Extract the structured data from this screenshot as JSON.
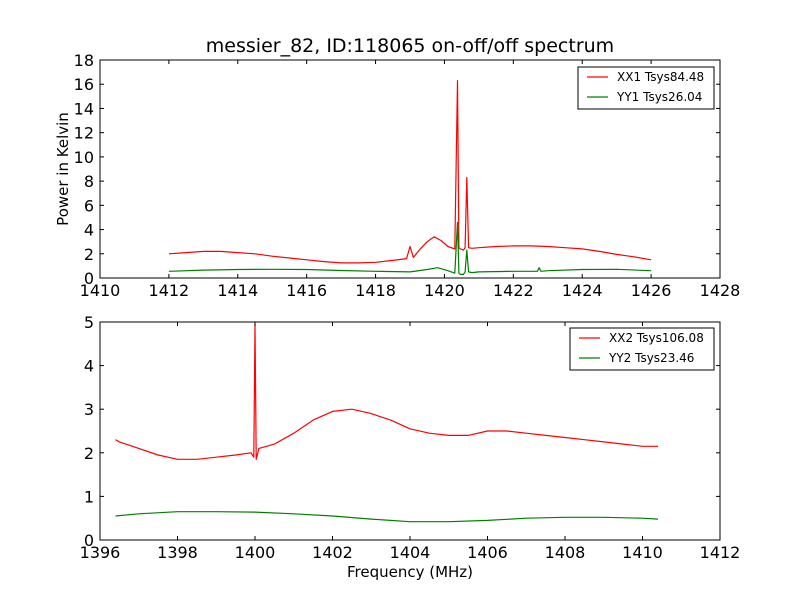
{
  "chart_data": [
    {
      "type": "line",
      "title": "messier_82, ID:118065 on-off/off spectrum",
      "xlabel": "",
      "ylabel": "Power in Kelvin",
      "xlim": [
        1410,
        1428
      ],
      "ylim": [
        0,
        18
      ],
      "xticks": [
        1410,
        1412,
        1414,
        1416,
        1418,
        1420,
        1422,
        1424,
        1426,
        1428
      ],
      "yticks": [
        0,
        2,
        4,
        6,
        8,
        10,
        12,
        14,
        16,
        18
      ],
      "grid": false,
      "legend": "top-right",
      "series": [
        {
          "name": "XX1 Tsys84.48",
          "color": "#ff0000",
          "x": [
            1412.0,
            1412.5,
            1413.0,
            1413.5,
            1414.0,
            1414.5,
            1415.0,
            1415.5,
            1416.0,
            1416.5,
            1417.0,
            1417.5,
            1418.0,
            1418.5,
            1418.9,
            1419.0,
            1419.1,
            1419.3,
            1419.5,
            1419.7,
            1419.9,
            1420.1,
            1420.3,
            1420.38,
            1420.42,
            1420.46,
            1420.55,
            1420.6,
            1420.65,
            1420.7,
            1420.8,
            1421.0,
            1421.5,
            1422.0,
            1422.5,
            1423.0,
            1423.5,
            1424.0,
            1424.5,
            1425.0,
            1425.5,
            1426.0
          ],
          "y": [
            2.0,
            2.1,
            2.2,
            2.2,
            2.1,
            2.0,
            1.8,
            1.65,
            1.5,
            1.35,
            1.25,
            1.25,
            1.3,
            1.45,
            1.6,
            2.6,
            1.7,
            2.4,
            3.0,
            3.4,
            3.1,
            2.6,
            2.4,
            16.3,
            2.5,
            2.4,
            2.3,
            2.5,
            8.3,
            2.5,
            2.45,
            2.5,
            2.6,
            2.65,
            2.65,
            2.6,
            2.5,
            2.4,
            2.2,
            1.95,
            1.75,
            1.5
          ]
        },
        {
          "name": "YY1 Tsys26.04",
          "color": "#008000",
          "x": [
            1412.0,
            1413.0,
            1414.0,
            1415.0,
            1416.0,
            1417.0,
            1418.0,
            1419.0,
            1419.5,
            1419.8,
            1420.1,
            1420.3,
            1420.38,
            1420.42,
            1420.46,
            1420.55,
            1420.6,
            1420.65,
            1420.7,
            1420.8,
            1421.0,
            1422.0,
            1422.7,
            1422.75,
            1422.8,
            1423.0,
            1424.0,
            1425.0,
            1426.0
          ],
          "y": [
            0.55,
            0.65,
            0.7,
            0.72,
            0.7,
            0.62,
            0.55,
            0.5,
            0.7,
            0.85,
            0.6,
            0.4,
            4.6,
            0.4,
            0.3,
            0.3,
            0.5,
            2.3,
            0.5,
            0.45,
            0.5,
            0.55,
            0.55,
            0.85,
            0.55,
            0.6,
            0.7,
            0.72,
            0.6
          ]
        }
      ]
    },
    {
      "type": "line",
      "title": "",
      "xlabel": "Frequency (MHz)",
      "ylabel": "",
      "xlim": [
        1396,
        1412
      ],
      "ylim": [
        0,
        5
      ],
      "xticks": [
        1396,
        1398,
        1400,
        1402,
        1404,
        1406,
        1408,
        1410,
        1412
      ],
      "yticks": [
        0,
        1,
        2,
        3,
        4,
        5
      ],
      "grid": false,
      "legend": "top-right",
      "series": [
        {
          "name": "XX2 Tsys106.08",
          "color": "#ff0000",
          "x": [
            1396.4,
            1396.5,
            1397.0,
            1397.5,
            1398.0,
            1398.5,
            1399.0,
            1399.5,
            1399.9,
            1399.97,
            1400.0,
            1400.03,
            1400.1,
            1400.5,
            1401.0,
            1401.5,
            1402.0,
            1402.5,
            1403.0,
            1403.5,
            1404.0,
            1404.5,
            1405.0,
            1405.5,
            1406.0,
            1406.5,
            1407.0,
            1407.5,
            1408.0,
            1408.5,
            1409.0,
            1409.5,
            1410.0,
            1410.4
          ],
          "y": [
            2.3,
            2.25,
            2.1,
            1.95,
            1.85,
            1.85,
            1.9,
            1.95,
            2.0,
            1.9,
            4.95,
            1.85,
            2.1,
            2.2,
            2.45,
            2.75,
            2.95,
            3.0,
            2.9,
            2.75,
            2.55,
            2.45,
            2.4,
            2.4,
            2.5,
            2.5,
            2.45,
            2.4,
            2.35,
            2.3,
            2.25,
            2.2,
            2.15,
            2.15
          ]
        },
        {
          "name": "YY2 Tsys23.46",
          "color": "#008000",
          "x": [
            1396.4,
            1397.0,
            1398.0,
            1399.0,
            1400.0,
            1401.0,
            1402.0,
            1403.0,
            1404.0,
            1405.0,
            1406.0,
            1407.0,
            1408.0,
            1409.0,
            1410.0,
            1410.4
          ],
          "y": [
            0.55,
            0.6,
            0.65,
            0.65,
            0.64,
            0.6,
            0.55,
            0.48,
            0.42,
            0.42,
            0.45,
            0.5,
            0.52,
            0.52,
            0.5,
            0.48
          ]
        }
      ]
    }
  ]
}
